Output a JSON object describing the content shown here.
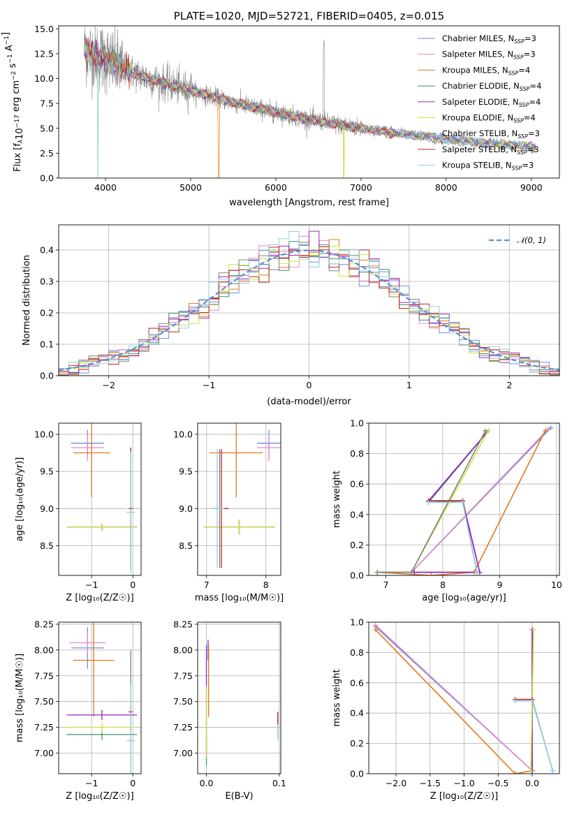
{
  "colors": {
    "Chabrier MILES": "#6c8ed6",
    "Salpeter MILES": "#e58ac4",
    "Kroupa MILES": "#e3781f",
    "Chabrier ELODIE": "#3f8f6a",
    "Salpeter ELODIE": "#9a22c4",
    "Kroupa ELODIE": "#cfe23c",
    "Chabrier STELIB": "#808080",
    "Salpeter STELIB": "#c02020",
    "Kroupa STELIB": "#8fd3e0"
  },
  "chart_data": [
    {
      "id": "spectrum",
      "type": "line",
      "title": "PLATE=1020, MJD=52721, FIBERID=0405, z=0.015",
      "xlabel": "wavelength [Angstrom, rest frame]",
      "ylabel_parts": {
        "a": "Flux [f",
        "b": "λ",
        "c": "10",
        "d": "−17",
        "e": " erg cm",
        "f": "−2",
        "g": " s",
        "h": "−1",
        "i": " A",
        "j": "−1",
        "k": "]"
      },
      "xlim": [
        3450,
        9330
      ],
      "ylim": [
        0,
        15.3
      ],
      "xticks": [
        4000,
        5000,
        6000,
        7000,
        8000,
        9000
      ],
      "yticks": [
        0.0,
        2.5,
        5.0,
        7.5,
        10.0,
        12.5,
        15.0
      ],
      "legend_position": "upper right",
      "legend": [
        {
          "name": "Chabrier MILES",
          "sub": "3"
        },
        {
          "name": "Salpeter MILES",
          "sub": "3"
        },
        {
          "name": "Kroupa MILES",
          "sub": "4"
        },
        {
          "name": "Chabrier ELODIE",
          "sub": "4"
        },
        {
          "name": "Salpeter ELODIE",
          "sub": "4"
        },
        {
          "name": "Kroupa ELODIE",
          "sub": "4"
        },
        {
          "name": "Chabrier STELIB",
          "sub": "3"
        },
        {
          "name": "Salpeter STELIB",
          "sub": "3"
        },
        {
          "name": "Kroupa STELIB",
          "sub": "3"
        }
      ],
      "legend_sub_prefix": "N",
      "legend_sub_label": "SSP",
      "model_continuum": [
        [
          3750,
          12.8
        ],
        [
          4000,
          12.0
        ],
        [
          4200,
          11.0
        ],
        [
          4500,
          10.0
        ],
        [
          5000,
          8.8
        ],
        [
          5500,
          7.6
        ],
        [
          6000,
          6.6
        ],
        [
          6500,
          5.7
        ],
        [
          7000,
          5.0
        ],
        [
          7500,
          4.4
        ],
        [
          8000,
          3.9
        ],
        [
          8500,
          3.5
        ],
        [
          9050,
          3.1
        ]
      ],
      "data_range": [
        3750,
        9050
      ],
      "grid": false
    },
    {
      "id": "residuals",
      "type": "step",
      "xlabel": "(data-model)/error",
      "ylabel": "Normed distribution",
      "xlim": [
        -2.5,
        2.5
      ],
      "ylim": [
        0,
        0.48
      ],
      "xticks": [
        -2,
        -1,
        0,
        1,
        2
      ],
      "yticks": [
        0.0,
        0.1,
        0.2,
        0.3,
        0.4
      ],
      "bin_width": 0.1,
      "reference_label": "𝒩(0, 1)",
      "grid": true
    },
    {
      "id": "age_vs_Z",
      "type": "errorbar",
      "xlabel": "Z [log₁₀(Z/Z☉)]",
      "ylabel": "age  [log₁₀(age/yr)]",
      "xlim": [
        -1.8,
        0.2
      ],
      "ylim": [
        8.1,
        10.15
      ],
      "xticks": [
        -1,
        0
      ],
      "yticks": [
        8.5,
        9.0,
        9.5,
        10.0
      ],
      "points": [
        {
          "model": "Chabrier MILES",
          "x": -1.1,
          "xe": 0.4,
          "y": 9.88,
          "ye": 0.18
        },
        {
          "model": "Salpeter MILES",
          "x": -1.1,
          "xe": 0.4,
          "y": 9.82,
          "ye": 0.18
        },
        {
          "model": "Kroupa MILES",
          "x": -1.0,
          "xe": 0.45,
          "y": 9.75,
          "ye": 0.6
        },
        {
          "model": "Chabrier ELODIE",
          "x": -0.75,
          "xe": 0.85,
          "y": 8.75,
          "ye": 0.05
        },
        {
          "model": "Salpeter ELODIE",
          "x": -0.75,
          "xe": 0.85,
          "y": 8.75,
          "ye": 0.05
        },
        {
          "model": "Kroupa ELODIE",
          "x": -0.75,
          "xe": 0.85,
          "y": 8.75,
          "ye": 0.05
        },
        {
          "model": "Chabrier STELIB",
          "x": -0.05,
          "xe": 0.05,
          "y": 9.0,
          "ye": 0.82
        },
        {
          "model": "Salpeter STELIB",
          "x": -0.05,
          "xe": 0.05,
          "y": 9.0,
          "ye": 0.82
        },
        {
          "model": "Kroupa STELIB",
          "x": -0.05,
          "xe": 0.1,
          "y": 8.95,
          "ye": 0.82
        }
      ],
      "grid": true
    },
    {
      "id": "age_vs_mass",
      "type": "errorbar",
      "xlabel": "mass [log₁₀(M/M☉)]",
      "ylabel": "",
      "xlim": [
        6.85,
        8.25
      ],
      "ylim": [
        8.1,
        10.15
      ],
      "xticks": [
        7,
        8
      ],
      "yticks": [
        8.5,
        9.0,
        9.5,
        10.0
      ],
      "points": [
        {
          "model": "Chabrier MILES",
          "x": 8.05,
          "xe": 0.2,
          "y": 9.88,
          "ye": 0.18
        },
        {
          "model": "Salpeter MILES",
          "x": 8.05,
          "xe": 0.2,
          "y": 9.82,
          "ye": 0.18
        },
        {
          "model": "Kroupa MILES",
          "x": 7.5,
          "xe": 0.45,
          "y": 9.75,
          "ye": 0.6
        },
        {
          "model": "Chabrier ELODIE",
          "x": 7.55,
          "xe": 0.6,
          "y": 8.75,
          "ye": 0.1
        },
        {
          "model": "Salpeter ELODIE",
          "x": 7.55,
          "xe": 0.6,
          "y": 8.75,
          "ye": 0.1
        },
        {
          "model": "Kroupa ELODIE",
          "x": 7.55,
          "xe": 0.6,
          "y": 8.75,
          "ye": 0.1
        },
        {
          "model": "Chabrier STELIB",
          "x": 7.22,
          "xe": 0.12,
          "y": 9.0,
          "ye": 0.8
        },
        {
          "model": "Salpeter STELIB",
          "x": 7.25,
          "xe": 0.12,
          "y": 9.0,
          "ye": 0.8
        },
        {
          "model": "Kroupa STELIB",
          "x": 7.18,
          "xe": 0.12,
          "y": 9.0,
          "ye": 0.8
        }
      ],
      "grid": true
    },
    {
      "id": "weight_vs_age",
      "type": "line",
      "xlabel": "age  [log₁₀(age/yr)]",
      "ylabel": "mass weight",
      "xlim": [
        6.7,
        10.05
      ],
      "ylim": [
        0,
        1.0
      ],
      "xticks": [
        7,
        8,
        9,
        10
      ],
      "yticks": [
        0.0,
        0.2,
        0.4,
        0.6,
        0.8,
        1.0
      ],
      "series": [
        {
          "model": "Chabrier MILES",
          "x": [
            6.85,
            7.45,
            9.9
          ],
          "y": [
            0.02,
            0.02,
            0.97
          ]
        },
        {
          "model": "Salpeter MILES",
          "x": [
            6.85,
            7.45,
            9.85
          ],
          "y": [
            0.02,
            0.02,
            0.96
          ]
        },
        {
          "model": "Kroupa MILES",
          "x": [
            6.85,
            7.8,
            8.55,
            9.8
          ],
          "y": [
            0.02,
            0.0,
            0.02,
            0.95
          ]
        },
        {
          "model": "Chabrier ELODIE",
          "x": [
            6.85,
            7.5,
            8.65,
            8.35,
            7.75,
            8.8
          ],
          "y": [
            0.02,
            0.02,
            0.02,
            0.49,
            0.48,
            0.95
          ]
        },
        {
          "model": "Salpeter ELODIE",
          "x": [
            6.85,
            7.5,
            8.65,
            8.35,
            7.75,
            8.8
          ],
          "y": [
            0.02,
            0.02,
            0.02,
            0.49,
            0.49,
            0.95
          ]
        },
        {
          "model": "Kroupa ELODIE",
          "x": [
            6.85,
            7.45,
            8.8
          ],
          "y": [
            0.02,
            0.02,
            0.95
          ]
        },
        {
          "model": "Chabrier STELIB",
          "x": [
            6.85,
            7.45,
            8.75
          ],
          "y": [
            0.02,
            0.02,
            0.95
          ]
        },
        {
          "model": "Salpeter STELIB",
          "x": [
            7.75,
            8.35,
            8.6
          ],
          "y": [
            0.49,
            0.49,
            0.02
          ]
        },
        {
          "model": "Kroupa STELIB",
          "x": [
            7.75,
            8.35,
            8.6
          ],
          "y": [
            0.48,
            0.48,
            0.02
          ]
        }
      ],
      "grid": true
    },
    {
      "id": "mass_vs_Z",
      "type": "errorbar",
      "xlabel": "Z [log₁₀(Z/Z☉)]",
      "ylabel": "mass [log₁₀(M/M☉)]",
      "xlim": [
        -1.8,
        0.2
      ],
      "ylim": [
        6.8,
        8.27
      ],
      "xticks": [
        -1,
        0
      ],
      "yticks": [
        7.0,
        7.25,
        7.5,
        7.75,
        8.0,
        8.25
      ],
      "points": [
        {
          "model": "Chabrier MILES",
          "x": -1.1,
          "xe": 0.4,
          "y": 8.02,
          "ye": 0.2
        },
        {
          "model": "Salpeter MILES",
          "x": -1.1,
          "xe": 0.45,
          "y": 8.07,
          "ye": 0.1
        },
        {
          "model": "Kroupa MILES",
          "x": -0.95,
          "xe": 0.5,
          "y": 7.9,
          "ye": 0.55
        },
        {
          "model": "Chabrier ELODIE",
          "x": -0.75,
          "xe": 0.85,
          "y": 7.18,
          "ye": 0.05
        },
        {
          "model": "Salpeter ELODIE",
          "x": -0.75,
          "xe": 0.85,
          "y": 7.37,
          "ye": 0.05
        },
        {
          "model": "Kroupa ELODIE",
          "x": -0.75,
          "xe": 0.85,
          "y": 7.25,
          "ye": 0.05
        },
        {
          "model": "Chabrier STELIB",
          "x": -0.05,
          "xe": 0.05,
          "y": 7.4,
          "ye": 0.6
        },
        {
          "model": "Salpeter STELIB",
          "x": -0.05,
          "xe": 0.05,
          "y": 7.4,
          "ye": 0.05
        },
        {
          "model": "Kroupa STELIB",
          "x": -0.05,
          "xe": 0.1,
          "y": 7.12,
          "ye": 0.55
        }
      ],
      "grid": true
    },
    {
      "id": "mass_vs_ebv",
      "type": "errorbar",
      "xlabel": "E(B-V)",
      "ylabel": "",
      "xlim": [
        -0.012,
        0.102
      ],
      "ylim": [
        6.8,
        8.27
      ],
      "xticks": [
        0.0,
        0.1
      ],
      "yticks": [
        7.0,
        7.25,
        7.5,
        7.75,
        8.0,
        8.25
      ],
      "points": [
        {
          "model": "Chabrier MILES",
          "x": 0.002,
          "xe": 0.0,
          "y": 8.0,
          "ye": 0.1
        },
        {
          "model": "Salpeter MILES",
          "x": 0.003,
          "xe": 0.0,
          "y": 8.0,
          "ye": 0.1
        },
        {
          "model": "Kroupa MILES",
          "x": 0.003,
          "xe": 0.0,
          "y": 7.7,
          "ye": 0.35
        },
        {
          "model": "Chabrier ELODIE",
          "x": 0.0,
          "xe": 0.0,
          "y": 7.0,
          "ye": 0.12
        },
        {
          "model": "Salpeter ELODIE",
          "x": 0.0,
          "xe": 0.0,
          "y": 7.5,
          "ye": 0.55
        },
        {
          "model": "Kroupa ELODIE",
          "x": 0.0,
          "xe": 0.0,
          "y": 7.3,
          "ye": 0.35
        },
        {
          "model": "Chabrier STELIB",
          "x": 0.098,
          "xe": 0.0,
          "y": 7.3,
          "ye": 0.1
        },
        {
          "model": "Salpeter STELIB",
          "x": 0.098,
          "xe": 0.0,
          "y": 7.33,
          "ye": 0.07
        },
        {
          "model": "Kroupa STELIB",
          "x": 0.098,
          "xe": 0.0,
          "y": 7.2,
          "ye": 0.08
        }
      ],
      "grid": true
    },
    {
      "id": "weight_vs_Z",
      "type": "line",
      "xlabel": "Z [log₁₀(Z/Z☉)]",
      "ylabel": "mass weight",
      "xlim": [
        -2.4,
        0.4
      ],
      "ylim": [
        0,
        1.0
      ],
      "xticks": [
        -2.0,
        -1.5,
        -1.0,
        -0.5,
        0.0
      ],
      "yticks": [
        0.0,
        0.2,
        0.4,
        0.6,
        0.8,
        1.0
      ],
      "series": [
        {
          "model": "Chabrier MILES",
          "x": [
            -2.3,
            0.0
          ],
          "y": [
            0.97,
            0.02
          ]
        },
        {
          "model": "Salpeter MILES",
          "x": [
            -2.3,
            0.0
          ],
          "y": [
            0.98,
            0.02
          ]
        },
        {
          "model": "Kroupa MILES",
          "x": [
            -2.3,
            -0.25,
            0.0
          ],
          "y": [
            0.95,
            0.0,
            0.02
          ]
        },
        {
          "model": "Chabrier ELODIE",
          "x": [
            0.0,
            0.0
          ],
          "y": [
            0.02,
            0.95
          ]
        },
        {
          "model": "Salpeter ELODIE",
          "x": [
            0.0,
            0.0
          ],
          "y": [
            0.02,
            0.95
          ]
        },
        {
          "model": "Kroupa ELODIE",
          "x": [
            -0.02,
            0.02
          ],
          "y": [
            0.02,
            0.95
          ]
        },
        {
          "model": "Chabrier STELIB",
          "x": [
            -0.25,
            0.0,
            0.3
          ],
          "y": [
            0.49,
            0.49,
            0.02
          ]
        },
        {
          "model": "Salpeter STELIB",
          "x": [
            -0.25,
            0.0
          ],
          "y": [
            0.49,
            0.49
          ]
        },
        {
          "model": "Kroupa STELIB",
          "x": [
            -0.25,
            0.0,
            0.3
          ],
          "y": [
            0.48,
            0.48,
            0.02
          ]
        }
      ],
      "grid": true
    }
  ]
}
